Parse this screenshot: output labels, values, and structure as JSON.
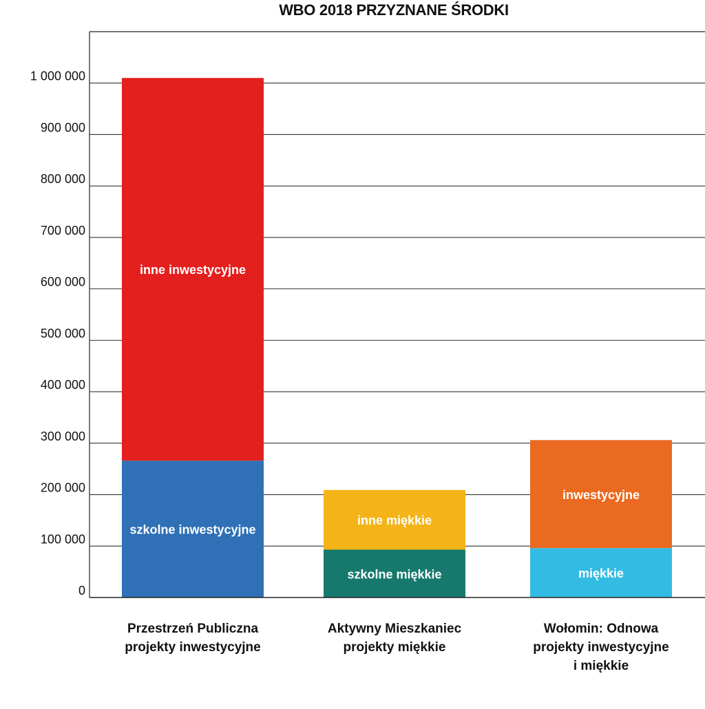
{
  "chart_data": {
    "type": "bar",
    "stacked": true,
    "title": "WBO 2018 PRZYZNANE ŚRODKI",
    "ylim": [
      0,
      1100000
    ],
    "yticks": [
      0,
      100000,
      200000,
      300000,
      400000,
      500000,
      600000,
      700000,
      800000,
      900000,
      1000000
    ],
    "ytick_labels": [
      "0",
      "100 000",
      "200 000",
      "300 000",
      "400 000",
      "500 000",
      "600 000",
      "700 000",
      "800 000",
      "900 000",
      "1 000 000"
    ],
    "grid": true,
    "categories": [
      [
        "Przestrzeń Publiczna",
        "projekty inwestycyjne"
      ],
      [
        "Aktywny Mieszkaniec",
        "projekty miękkie"
      ],
      [
        "Wołomin: Odnowa",
        "projekty inwestycyjne",
        "i miękkie"
      ]
    ],
    "bars": [
      {
        "segments": [
          {
            "label": "szkolne inwestycyjne",
            "value": 266000,
            "color": "#2F70B6"
          },
          {
            "label": "inne inwestycyjne",
            "value": 744000,
            "color": "#E3201E"
          }
        ]
      },
      {
        "segments": [
          {
            "label": "szkolne miękkie",
            "value": 93000,
            "color": "#17796E"
          },
          {
            "label": "inne miękkie",
            "value": 116000,
            "color": "#F4B418"
          }
        ]
      },
      {
        "segments": [
          {
            "label": "miękkie",
            "value": 96000,
            "color": "#33BCE3"
          },
          {
            "label": "inwestycyjne",
            "value": 210000,
            "color": "#EA6A21"
          }
        ]
      }
    ]
  }
}
